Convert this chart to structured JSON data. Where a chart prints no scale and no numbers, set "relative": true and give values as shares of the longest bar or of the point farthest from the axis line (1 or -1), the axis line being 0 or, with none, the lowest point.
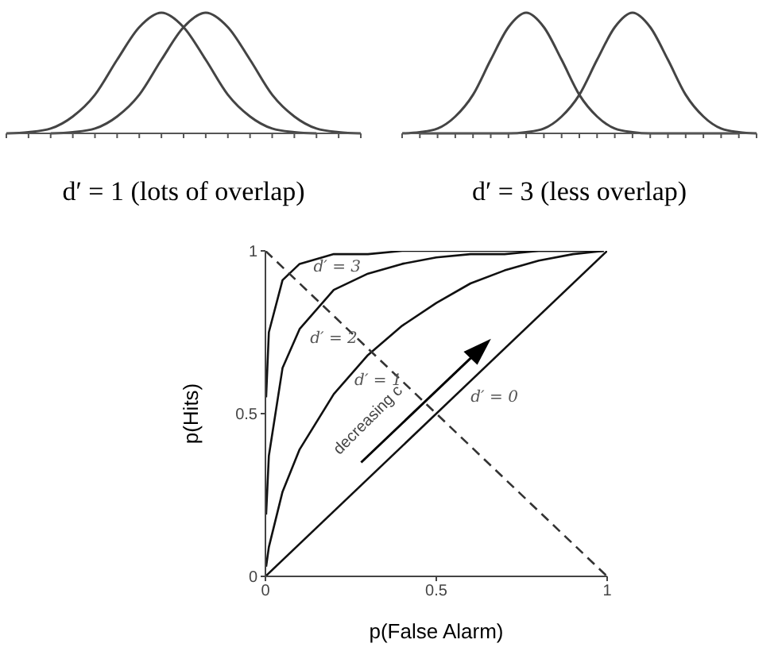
{
  "chart_data": [
    {
      "type": "line",
      "relative": true,
      "xlabel": "d′ = 1 (lots of overlap)",
      "marker": "none",
      "categories": [
        null,
        null,
        null,
        null,
        null,
        null,
        null,
        null,
        null,
        null,
        null,
        null,
        null,
        null,
        null,
        null,
        null
      ],
      "series": [
        {
          "color": "#444444",
          "values": [
            0,
            0.01,
            0.04,
            0.14,
            0.32,
            0.61,
            0.88,
            1,
            0.88,
            0.61,
            0.32,
            0.14,
            0.04,
            0.01,
            0,
            null,
            null
          ]
        },
        {
          "color": "#444444",
          "values": [
            null,
            null,
            0,
            0.01,
            0.04,
            0.14,
            0.32,
            0.61,
            0.88,
            1,
            0.88,
            0.61,
            0.32,
            0.14,
            0.04,
            0.01,
            0
          ]
        }
      ]
    },
    {
      "type": "line",
      "relative": true,
      "xlabel": "d′ = 3 (less overlap)",
      "marker": "none",
      "categories": [
        null,
        null,
        null,
        null,
        null,
        null,
        null,
        null,
        null,
        null,
        null,
        null,
        null,
        null,
        null,
        null,
        null,
        null,
        null,
        null,
        null
      ],
      "series": [
        {
          "color": "#444444",
          "values": [
            0,
            0.01,
            0.04,
            0.14,
            0.32,
            0.61,
            0.88,
            1,
            0.88,
            0.61,
            0.32,
            0.14,
            0.04,
            0.01,
            0,
            0,
            0,
            0,
            0,
            0,
            null
          ]
        },
        {
          "color": "#444444",
          "values": [
            null,
            0,
            0,
            0,
            0,
            0,
            0,
            0.01,
            0.04,
            0.14,
            0.32,
            0.61,
            0.88,
            1,
            0.88,
            0.61,
            0.32,
            0.14,
            0.04,
            0.01,
            0
          ]
        }
      ]
    },
    {
      "type": "line",
      "xlabel": "p(False Alarm)",
      "ylabel": "p(Hits)",
      "marker": "none",
      "xlim": [
        0,
        1
      ],
      "ylim": [
        0,
        1
      ],
      "xticks": [
        0,
        0.5,
        1
      ],
      "yticks": [
        0,
        0.5,
        1
      ],
      "annotations": [
        "decreasing c"
      ],
      "series": [
        {
          "name": "d′ = 0",
          "color": "#111111",
          "x": [
            0,
            1
          ],
          "values": [
            0,
            1
          ]
        },
        {
          "name": "d′ = 1",
          "color": "#111111",
          "x": [
            0.002,
            0.01,
            0.05,
            0.1,
            0.2,
            0.3,
            0.4,
            0.5,
            0.6,
            0.7,
            0.8,
            0.9,
            0.99
          ],
          "values": [
            0.03,
            0.09,
            0.26,
            0.39,
            0.56,
            0.68,
            0.77,
            0.84,
            0.9,
            0.94,
            0.97,
            0.99,
            1
          ]
        },
        {
          "name": "d′ = 2",
          "color": "#111111",
          "x": [
            0.002,
            0.01,
            0.05,
            0.1,
            0.2,
            0.3,
            0.4,
            0.5,
            0.6,
            0.7,
            0.8,
            0.9,
            0.99
          ],
          "values": [
            0.19,
            0.37,
            0.64,
            0.76,
            0.88,
            0.93,
            0.96,
            0.98,
            0.99,
            0.99,
            1,
            1,
            1
          ]
        },
        {
          "name": "d′ = 3",
          "color": "#111111",
          "x": [
            0.002,
            0.01,
            0.05,
            0.1,
            0.2,
            0.3,
            0.4,
            0.5,
            0.6,
            0.7,
            0.8,
            0.9,
            0.99
          ],
          "values": [
            0.55,
            0.75,
            0.91,
            0.96,
            0.99,
            0.99,
            1,
            1,
            1,
            1,
            1,
            1,
            1
          ]
        },
        {
          "color": "#333333",
          "line_style": "dashed",
          "x": [
            0,
            1
          ],
          "values": [
            1,
            0
          ]
        }
      ]
    }
  ]
}
